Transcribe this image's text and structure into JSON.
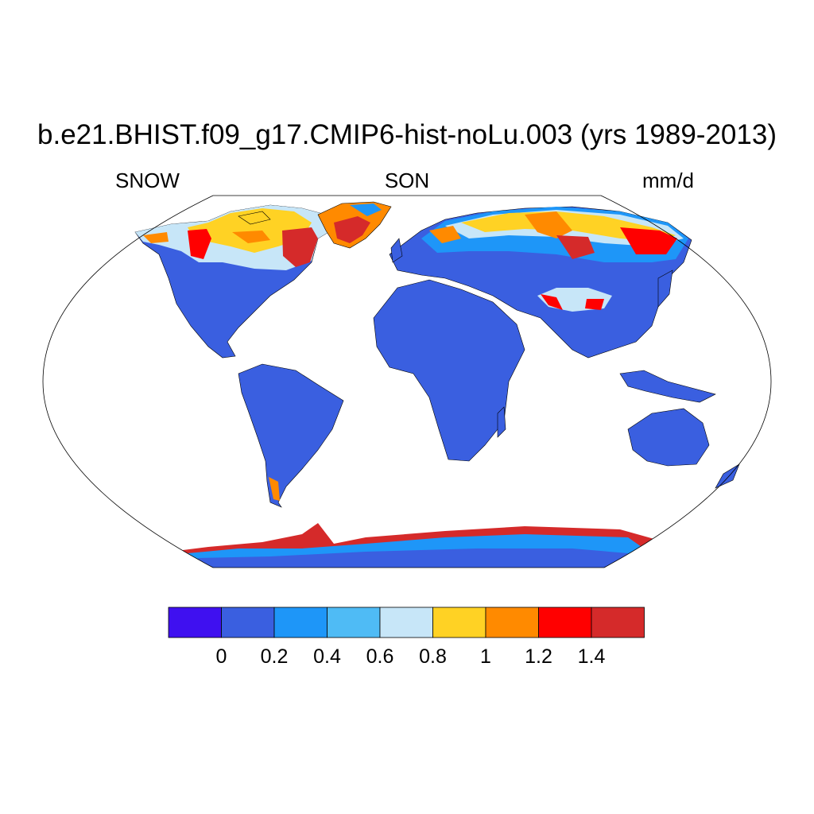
{
  "title": "b.e21.BHIST.f09_g17.CMIP6-hist-noLu.003 (yrs 1989-2013)",
  "left_label": "SNOW",
  "center_label": "SON",
  "right_label": "mm/d",
  "projection": "robinson",
  "colors": {
    "ocean": "#ffffff",
    "frame": "#000000",
    "land_low": "#3a5fe0",
    "land_mid": "#1e96f8",
    "land_light": "#c7e6f8",
    "snow_yellow": "#ffd224",
    "snow_orange": "#ff8a00",
    "snow_red": "#ff0000",
    "snow_darkred": "#d52a2a"
  },
  "colorbar": {
    "colors": [
      "#3f10f0",
      "#3a5fe0",
      "#1e96f8",
      "#4fbbf5",
      "#c7e6f8",
      "#ffd224",
      "#ff8a00",
      "#ff0000",
      "#d52a2a"
    ],
    "ticks": [
      "0",
      "0.2",
      "0.4",
      "0.6",
      "0.8",
      "1",
      "1.2",
      "1.4"
    ]
  }
}
